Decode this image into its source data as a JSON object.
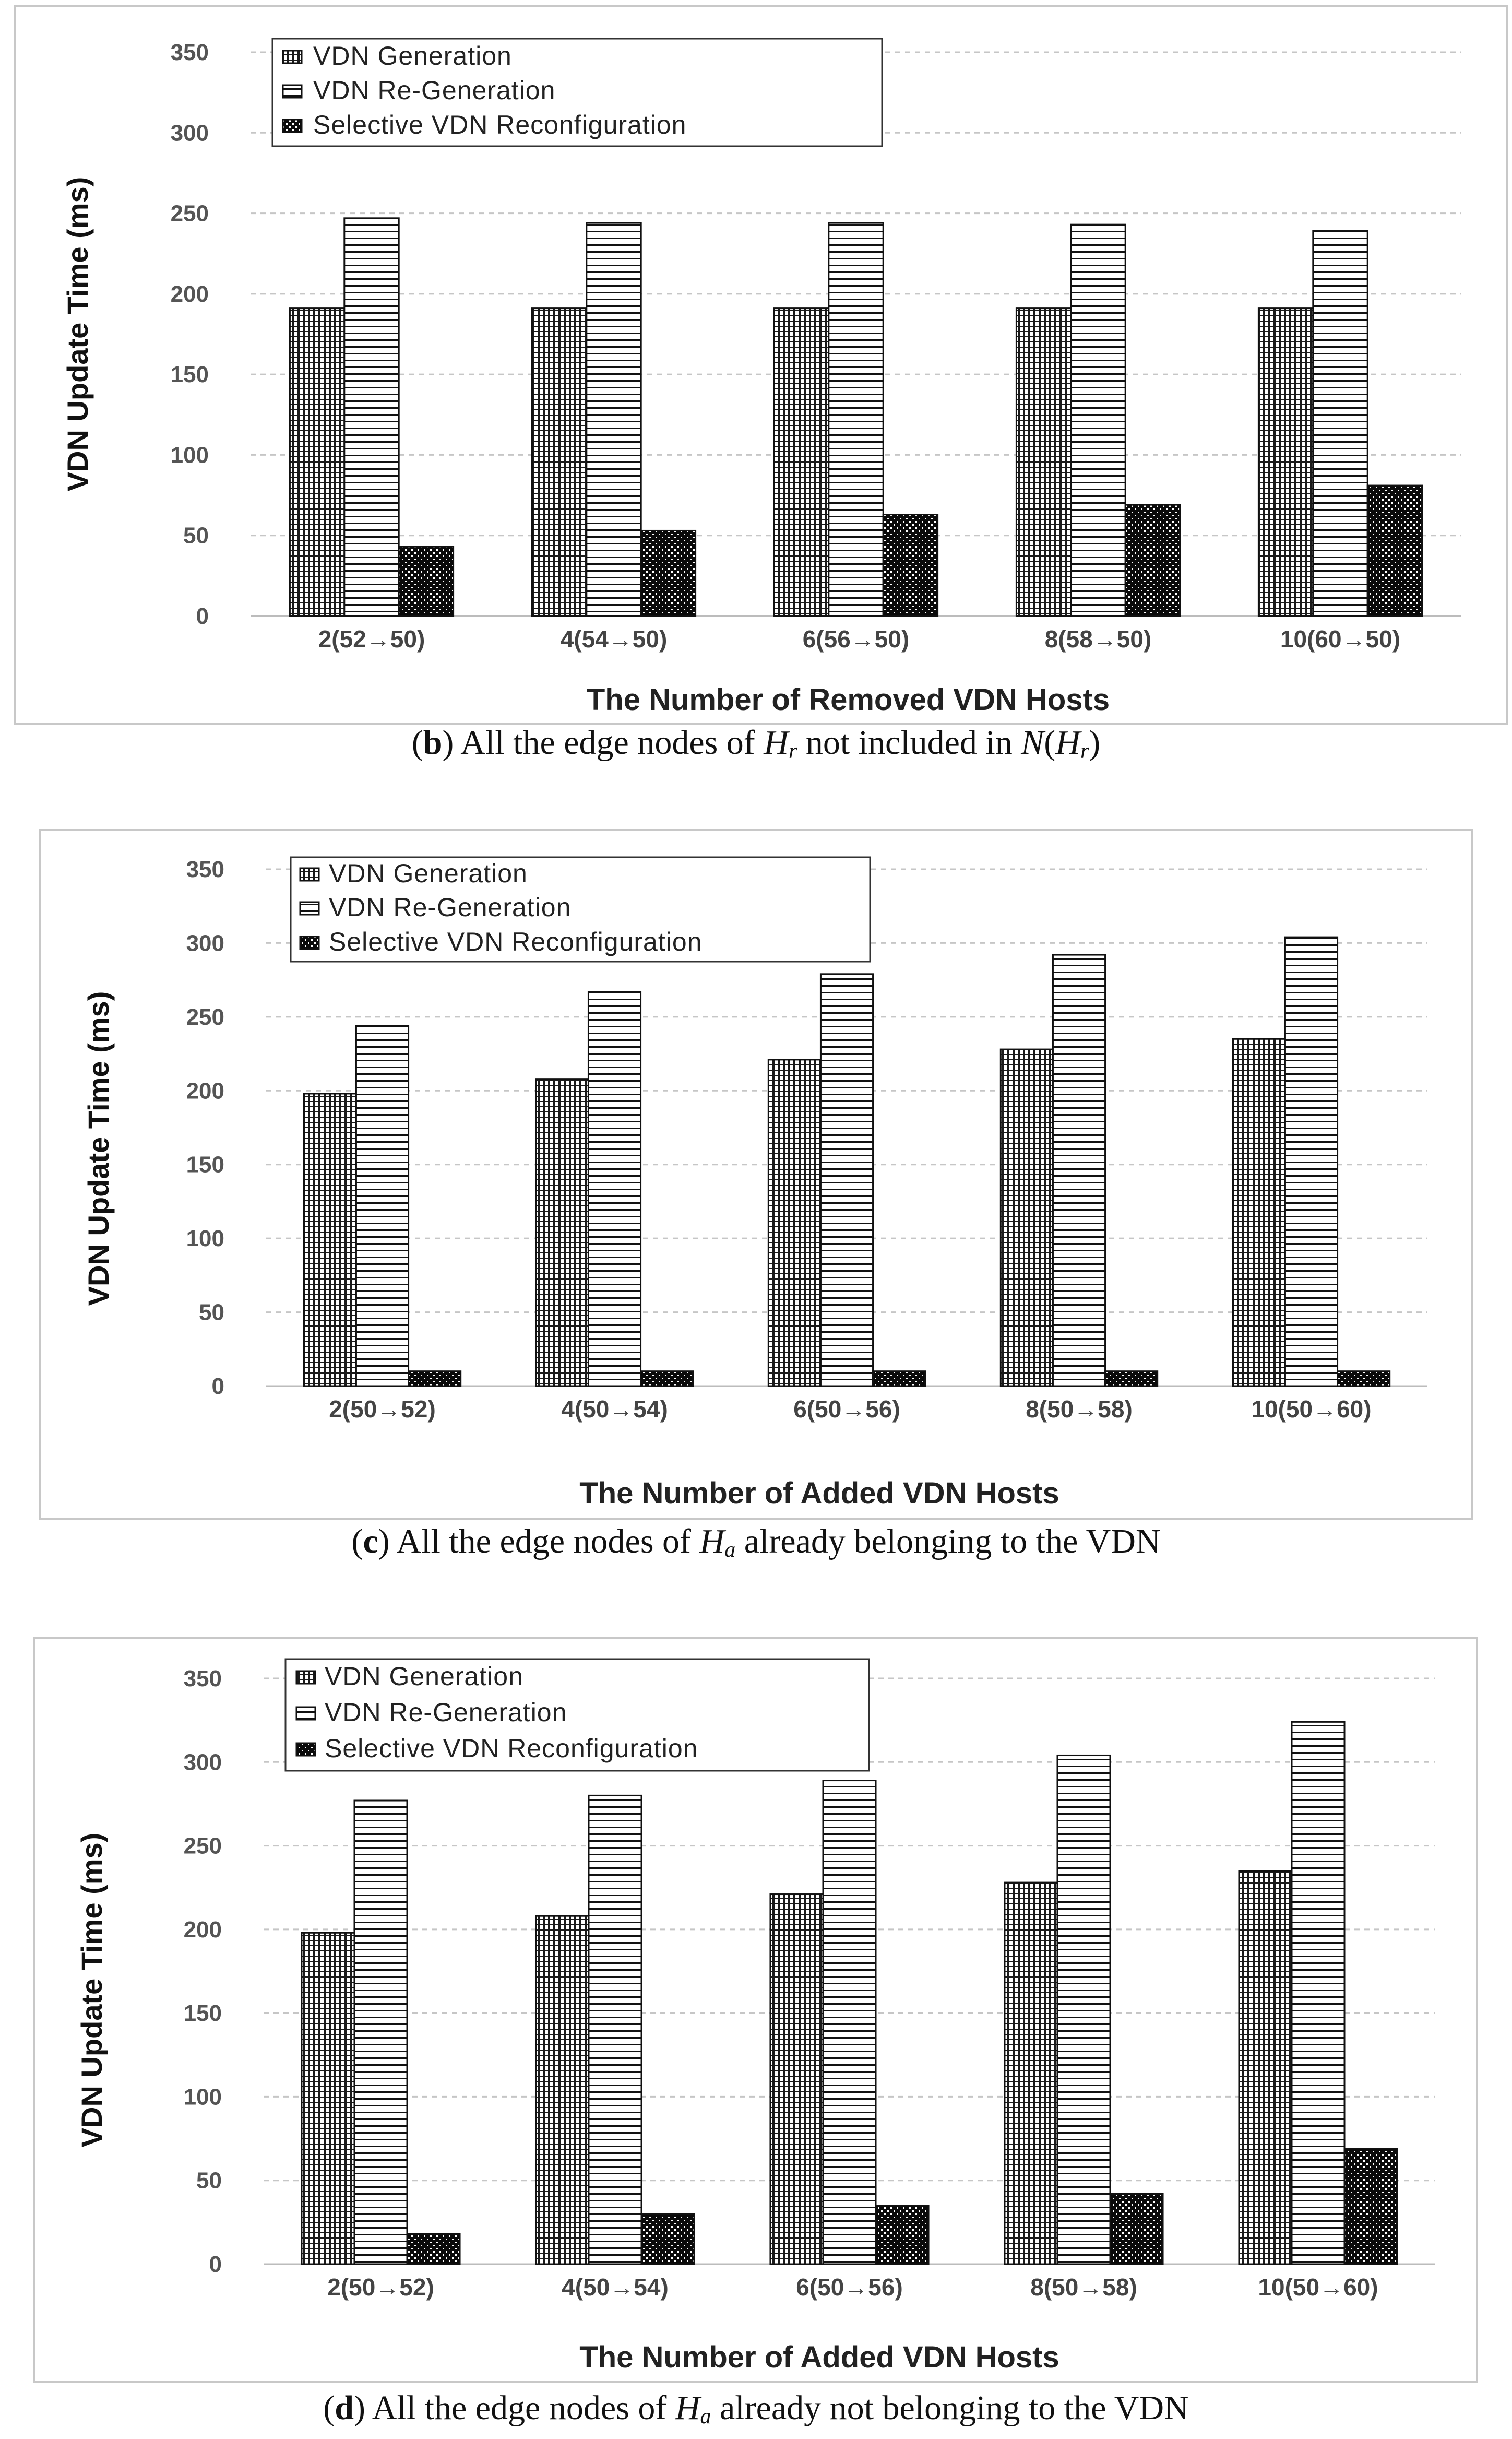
{
  "chart_data": [
    {
      "type": "bar",
      "caption": {
        "letter": "b",
        "text": "All the edge nodes of Hr not included in N(Hr)"
      },
      "categories": [
        "2(52→50)",
        "4(54→50)",
        "6(56→50)",
        "8(58→50)",
        "10(60→50)"
      ],
      "series": [
        {
          "name": "VDN Generation",
          "values": [
            191,
            191,
            191,
            191,
            191
          ]
        },
        {
          "name": "VDN Re-Generation",
          "values": [
            247,
            244,
            244,
            243,
            239
          ]
        },
        {
          "name": "Selective VDN Reconfiguration",
          "values": [
            43,
            53,
            63,
            69,
            81
          ]
        }
      ],
      "xlabel": "The Number of Removed VDN Hosts",
      "ylabel": "VDN Update Time (ms)",
      "ylim": [
        0,
        350
      ],
      "yticks": [
        "0",
        "50",
        "100",
        "150",
        "200",
        "250",
        "300",
        "350"
      ],
      "legend": "top-left"
    },
    {
      "type": "bar",
      "caption": {
        "letter": "c",
        "text": "All the edge nodes of Ha already belonging to the VDN"
      },
      "categories": [
        "2(50→52)",
        "4(50→54)",
        "6(50→56)",
        "8(50→58)",
        "10(50→60)"
      ],
      "series": [
        {
          "name": "VDN Generation",
          "values": [
            198,
            208,
            221,
            228,
            235
          ]
        },
        {
          "name": "VDN Re-Generation",
          "values": [
            244,
            267,
            279,
            292,
            304
          ]
        },
        {
          "name": "Selective VDN Reconfiguration",
          "values": [
            10,
            10,
            10,
            10,
            10
          ]
        }
      ],
      "xlabel": "The Number of Added VDN Hosts",
      "ylabel": "VDN Update Time (ms)",
      "ylim": [
        0,
        350
      ],
      "yticks": [
        "0",
        "50",
        "100",
        "150",
        "200",
        "250",
        "300",
        "350"
      ],
      "legend": "top-left"
    },
    {
      "type": "bar",
      "caption": {
        "letter": "d",
        "text": "All the edge nodes of Ha already not belonging to the VDN"
      },
      "categories": [
        "2(50→52)",
        "4(50→54)",
        "6(50→56)",
        "8(50→58)",
        "10(50→60)"
      ],
      "series": [
        {
          "name": "VDN Generation",
          "values": [
            198,
            208,
            221,
            228,
            235
          ]
        },
        {
          "name": "VDN Re-Generation",
          "values": [
            277,
            280,
            289,
            304,
            324
          ]
        },
        {
          "name": "Selective VDN Reconfiguration",
          "values": [
            18,
            30,
            35,
            42,
            69
          ]
        }
      ],
      "xlabel": "The Number of Added VDN Hosts",
      "ylabel": "VDN Update Time (ms)",
      "ylim": [
        0,
        350
      ],
      "yticks": [
        "0",
        "50",
        "100",
        "150",
        "200",
        "250",
        "300",
        "350"
      ],
      "legend": "top-left"
    }
  ],
  "captions": [
    {
      "letter": "b",
      "pre": "All the edge nodes of ",
      "var1": "H",
      "sub1": "r",
      "mid": " not included in ",
      "var2": "N",
      "open": "(",
      "var3": "H",
      "sub3": "r",
      "close": ")"
    },
    {
      "letter": "c",
      "pre": "All the edge nodes of ",
      "var1": "H",
      "sub1": "a",
      "post": " already belonging to the VDN"
    },
    {
      "letter": "d",
      "pre": "All the edge nodes of ",
      "var1": "H",
      "sub1": "a",
      "post": " already not belonging to the VDN"
    }
  ],
  "colors": {
    "frame": "#c8c8c8",
    "grid": "#c6c6c6",
    "bar_stroke": "#111111",
    "selective_fill": "#0a0a0a"
  }
}
